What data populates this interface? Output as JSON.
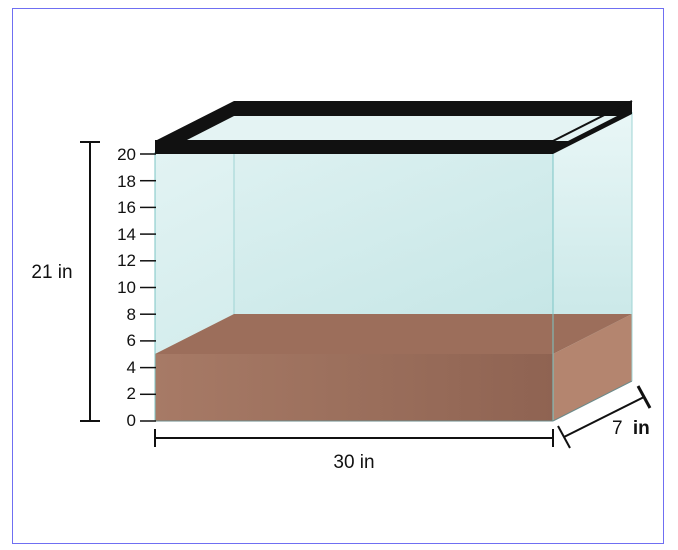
{
  "diagram": {
    "height_label": "21 in",
    "width_label": "30 in",
    "depth_label_num": "7",
    "depth_label_unit": "in",
    "scale_ticks": [
      "20",
      "18",
      "16",
      "14",
      "12",
      "10",
      "8",
      "6",
      "4",
      "2",
      "0"
    ],
    "colors": {
      "border": "#6f6ff2",
      "glass_top": "#e9f6f6",
      "glass_bottom": "#c6e8e8",
      "sand_front": "#a07060",
      "sand_top": "#9c6d5a",
      "sand_side": "#b08070",
      "frame": "#111111"
    }
  }
}
